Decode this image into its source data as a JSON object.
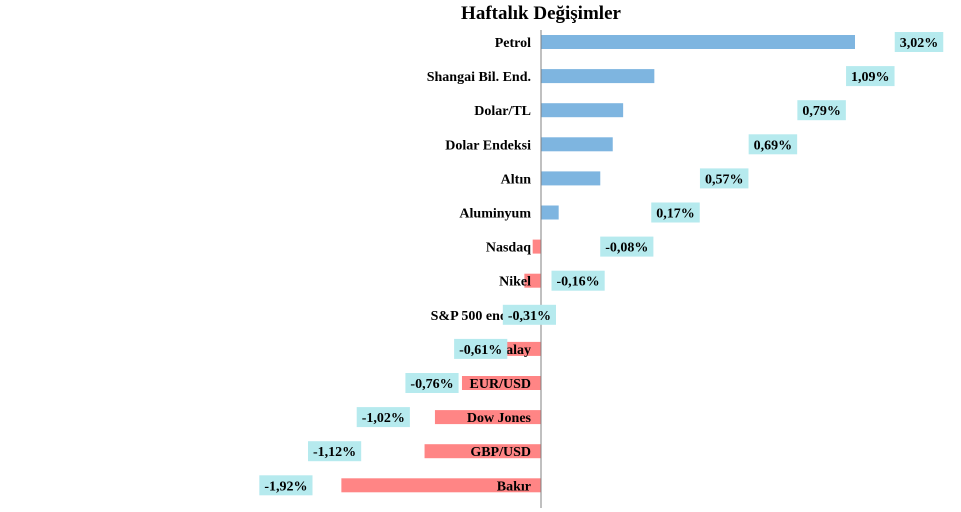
{
  "chart_data": {
    "type": "bar",
    "orientation": "horizontal",
    "title": "Haftalık Değişimler",
    "xlabel": "",
    "ylabel": "",
    "categories": [
      "Petrol",
      "Shangai Bil. End.",
      "Dolar/TL",
      "Dolar Endeksi",
      "Altın",
      "Aluminyum",
      "Nasdaq",
      "Nikel",
      "S&P 500 endeksi",
      "Kalay",
      "EUR/USD",
      "Dow Jones",
      "GBP/USD",
      "Bakır"
    ],
    "values": [
      3.02,
      1.09,
      0.79,
      0.69,
      0.57,
      0.17,
      -0.08,
      -0.16,
      -0.31,
      -0.61,
      -0.76,
      -1.02,
      -1.12,
      -1.92
    ],
    "value_labels": [
      "3,02%",
      "1,09%",
      "0,79%",
      "0,69%",
      "0,57%",
      "0,17%",
      "-0,08%",
      "-0,16%",
      "-0,31%",
      "-0,61%",
      "-0,76%",
      "-1,02%",
      "-1,12%",
      "-1,92%"
    ],
    "xlim": [
      -1.92,
      3.02
    ],
    "grid": false,
    "legend": "none",
    "colors": {
      "positive": "#7EB5E0",
      "negative": "#FF8585",
      "label_box": "#B6EAEE",
      "axis": "#808080",
      "text": "#000000"
    }
  }
}
